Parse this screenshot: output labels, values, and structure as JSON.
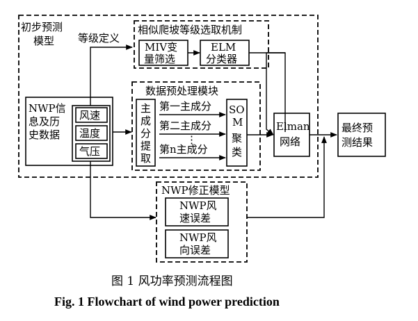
{
  "outer": {
    "label_line1": "初步预测",
    "label_line2": "模型"
  },
  "grade_def": "等级定义",
  "similar": {
    "title": "相似爬坡等级选取机制",
    "miv_line1": "MIV变",
    "miv_line2": "量筛选",
    "elm_line1": "ELM",
    "elm_line2": "分类器"
  },
  "nwp_info": {
    "line1": "NWP信",
    "line2": "息及历",
    "line3": "史数据",
    "items": [
      "风速",
      "温度",
      "气压"
    ]
  },
  "preprocess": {
    "title": "数据预处理模块",
    "pca_chars": [
      "主",
      "成",
      "分",
      "提",
      "取"
    ],
    "components": [
      "第一主成分",
      "第二主成分",
      "第n主成分"
    ],
    "dots": "⋮",
    "som_chars": [
      "SO",
      "M",
      "聚",
      "类"
    ]
  },
  "elman": {
    "line1": "Elman",
    "line2": "网络"
  },
  "final": {
    "line1": "最终预",
    "line2": "测结果"
  },
  "nwp_fix": {
    "title": "NWP修正模型",
    "speed_line1": "NWP风",
    "speed_line2": "速误差",
    "dir_line1": "NWP风",
    "dir_line2": "向误差"
  },
  "caption": {
    "zh": "图 1   风功率预测流程图",
    "en": "Fig. 1    Flowchart of wind power prediction"
  }
}
